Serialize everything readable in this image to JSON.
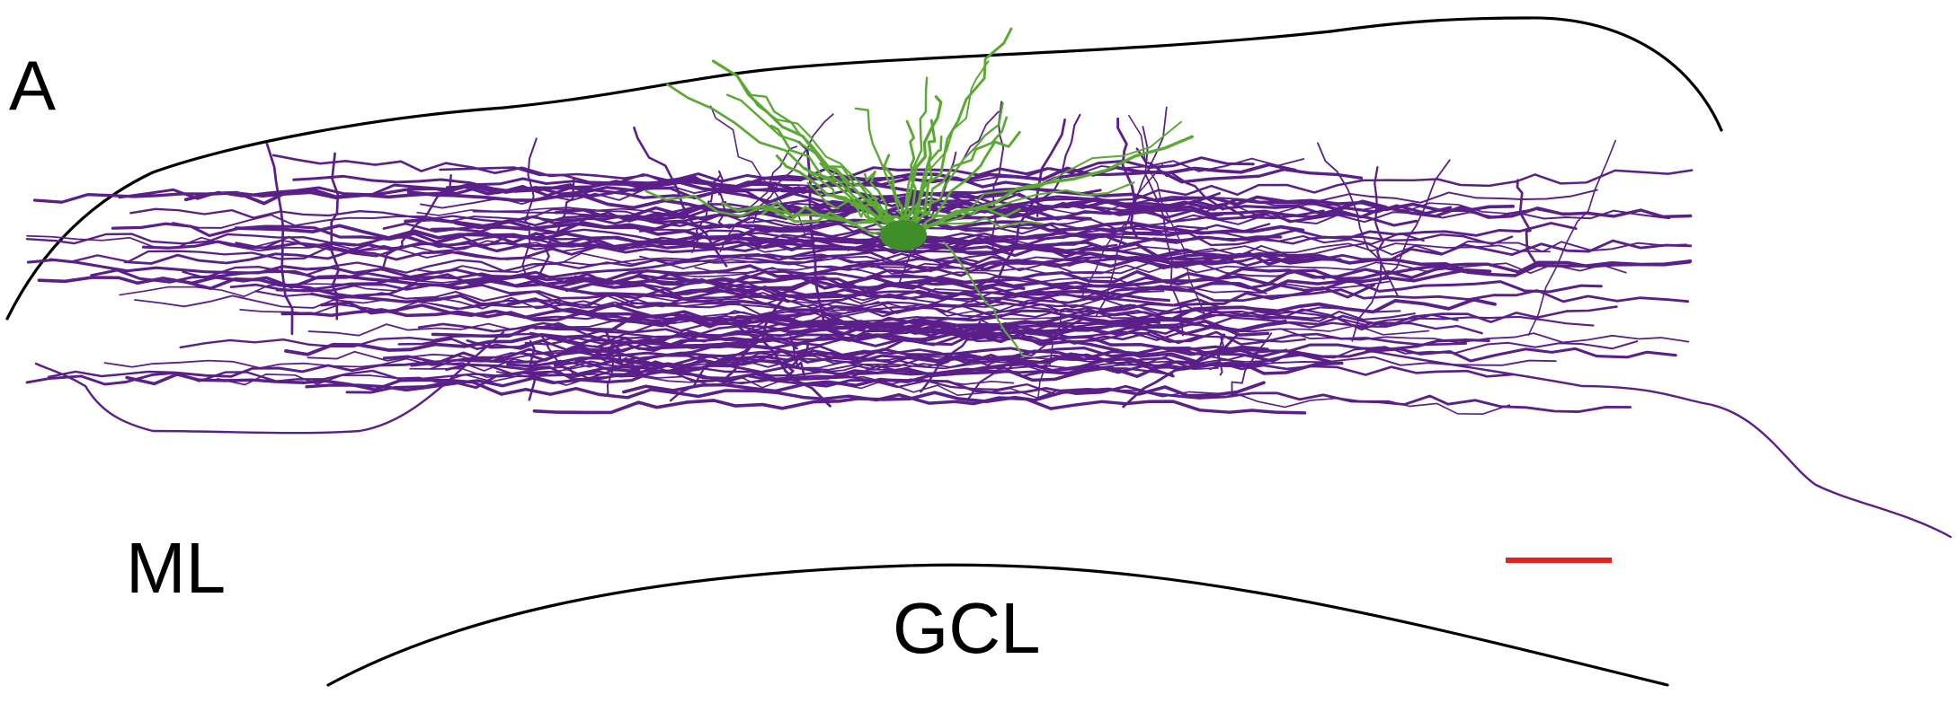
{
  "panel_label": "A",
  "layer_labels": {
    "molecular": "ML",
    "granule": "GCL"
  },
  "colors": {
    "axon": "#5b1f8a",
    "dendrite": "#5aaa32",
    "soma": "#3e8f2a",
    "outline": "#000000",
    "scale_bar": "#e32222",
    "background": "#ffffff"
  },
  "elements": {
    "pia_outline": "outer-surface-curve",
    "gcl_border": "granule-layer-border-curve",
    "axonal_plexus": "purple-axon-arbor",
    "dendritic_tree": "green-dendrite-arbor",
    "cell_body": "soma",
    "scale_bar": "scale-bar"
  }
}
